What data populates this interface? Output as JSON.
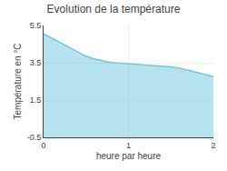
{
  "chart_data": {
    "type": "area",
    "title": "Evolution de la température",
    "xlabel": "heure par heure",
    "ylabel": "Température en °C",
    "x": [
      0.0,
      0.083,
      0.167,
      0.25,
      0.333,
      0.417,
      0.5,
      0.583,
      0.667,
      0.75,
      0.833,
      0.917,
      1.0,
      1.083,
      1.167,
      1.25,
      1.333,
      1.417,
      1.5,
      1.583,
      1.667,
      1.75,
      1.833,
      1.917,
      2.0
    ],
    "values": [
      5.05,
      4.85,
      4.65,
      4.45,
      4.25,
      4.05,
      3.85,
      3.72,
      3.62,
      3.55,
      3.5,
      3.47,
      3.45,
      3.42,
      3.4,
      3.38,
      3.35,
      3.32,
      3.28,
      3.22,
      3.15,
      3.05,
      2.95,
      2.85,
      2.75
    ],
    "color": "#6fc8de",
    "xlim": [
      0,
      2
    ],
    "xticks": [
      0,
      1,
      2
    ],
    "ylim": [
      -0.5,
      5.5
    ],
    "yticks": [
      -0.5,
      1.5,
      3.5,
      5.5
    ],
    "grid": true
  }
}
